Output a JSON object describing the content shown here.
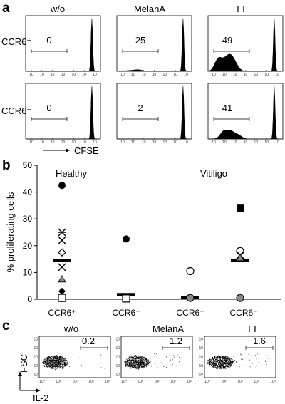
{
  "panel_a": {
    "letter": "a",
    "col_titles": [
      "w/o",
      "MelanA",
      "TT"
    ],
    "row_labels": [
      "CCR6⁺",
      "CCR6⁻"
    ],
    "gate_values": [
      [
        "0",
        "25",
        "49"
      ],
      [
        "0",
        "2",
        "41"
      ]
    ],
    "x_axis_label": "CFSE"
  },
  "panel_b": {
    "letter": "b",
    "group_titles": [
      "Healthy",
      "Vitiligo"
    ],
    "x_tick_labels": [
      "CCR6⁺",
      "CCR6⁻",
      "CCR6⁺",
      "CCR6⁻"
    ]
  },
  "panel_c": {
    "letter": "c",
    "col_titles": [
      "w/o",
      "MelanA",
      "TT"
    ],
    "gate_values": [
      "0.2",
      "1.2",
      "1.6"
    ],
    "y_axis_label": "FSC",
    "x_axis_label": "IL-2",
    "x_tick_labels": [
      "10⁰",
      "10¹",
      "10²",
      "10³",
      "10⁴"
    ]
  },
  "chart_data": [
    {
      "type": "histogram",
      "panel": "a",
      "x_scale": "log",
      "rows": [
        "CCR6⁺",
        "CCR6⁻"
      ],
      "columns": [
        "w/o",
        "MelanA",
        "TT"
      ],
      "percent_in_gate": [
        [
          0,
          25,
          49
        ],
        [
          0,
          2,
          41
        ]
      ]
    },
    {
      "type": "scatter",
      "panel": "b",
      "ylabel": "% proliferating cells",
      "ylim": [
        0,
        50
      ],
      "yticks": [
        0,
        10,
        20,
        30,
        40,
        50
      ],
      "categories": [
        "CCR6⁺",
        "CCR6⁻",
        "CCR6⁺",
        "CCR6⁻"
      ],
      "groups": [
        "Healthy",
        "Healthy",
        "Vitiligo",
        "Vitiligo"
      ],
      "points": [
        {
          "category": 0,
          "marker": "filled-circle",
          "y": 42.5
        },
        {
          "category": 0,
          "marker": "asterisk",
          "y": 25
        },
        {
          "category": 0,
          "marker": "x",
          "y": 22
        },
        {
          "category": 0,
          "marker": "open-diamond",
          "y": 17.5
        },
        {
          "category": 0,
          "marker": "x",
          "y": 12
        },
        {
          "category": 0,
          "marker": "gray-triangle",
          "y": 7.5
        },
        {
          "category": 0,
          "marker": "filled-diamond",
          "y": 3
        },
        {
          "category": 0,
          "marker": "open-square",
          "y": 0.5
        },
        {
          "category": 1,
          "marker": "filled-circle",
          "y": 22.5
        },
        {
          "category": 1,
          "marker": "open-square",
          "y": 0.3
        },
        {
          "category": 2,
          "marker": "open-circle",
          "y": 10.5
        },
        {
          "category": 2,
          "marker": "gray-circle",
          "y": 0.5
        },
        {
          "category": 3,
          "marker": "filled-square",
          "y": 34
        },
        {
          "category": 3,
          "marker": "open-circle",
          "y": 18
        },
        {
          "category": 3,
          "marker": "x",
          "y": 16.5
        },
        {
          "category": 3,
          "marker": "gray-triangle",
          "y": 15.5
        },
        {
          "category": 3,
          "marker": "gray-circle",
          "y": 0.5
        }
      ],
      "means": [
        14.5,
        1.8,
        0.8,
        14.5
      ]
    },
    {
      "type": "scatter",
      "panel": "c",
      "xlabel": "IL-2",
      "ylabel": "FSC",
      "x_scale": "log",
      "y_scale": "log",
      "columns": [
        "w/o",
        "MelanA",
        "TT"
      ],
      "percent_in_gate": [
        0.2,
        1.2,
        1.6
      ]
    }
  ]
}
